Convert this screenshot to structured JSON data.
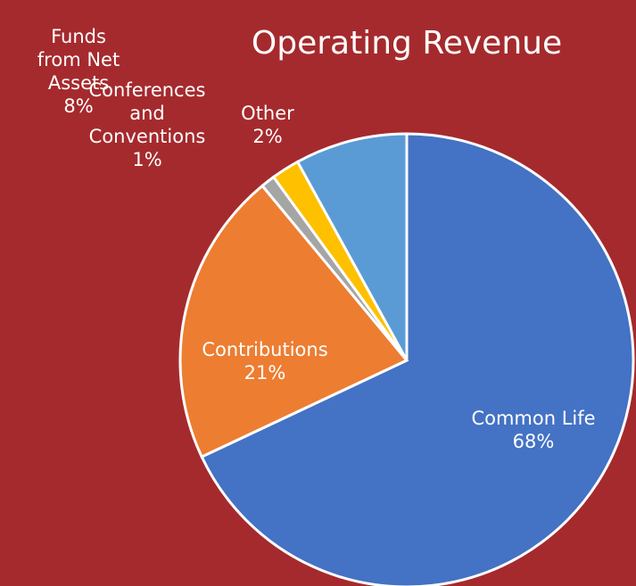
{
  "chart_data": {
    "type": "pie",
    "title": "Operating Revenue",
    "categories": [
      "Common Life",
      "Contributions",
      "Conferences and Conventions",
      "Other",
      "Funds from Net Assets"
    ],
    "values": [
      68,
      21,
      1,
      2,
      8
    ],
    "value_labels": [
      "68%",
      "21%",
      "1%",
      "2%",
      "8%"
    ],
    "colors": [
      "#4472c4",
      "#ed7d31",
      "#a5a5a5",
      "#ffc000",
      "#5b9bd5"
    ]
  }
}
